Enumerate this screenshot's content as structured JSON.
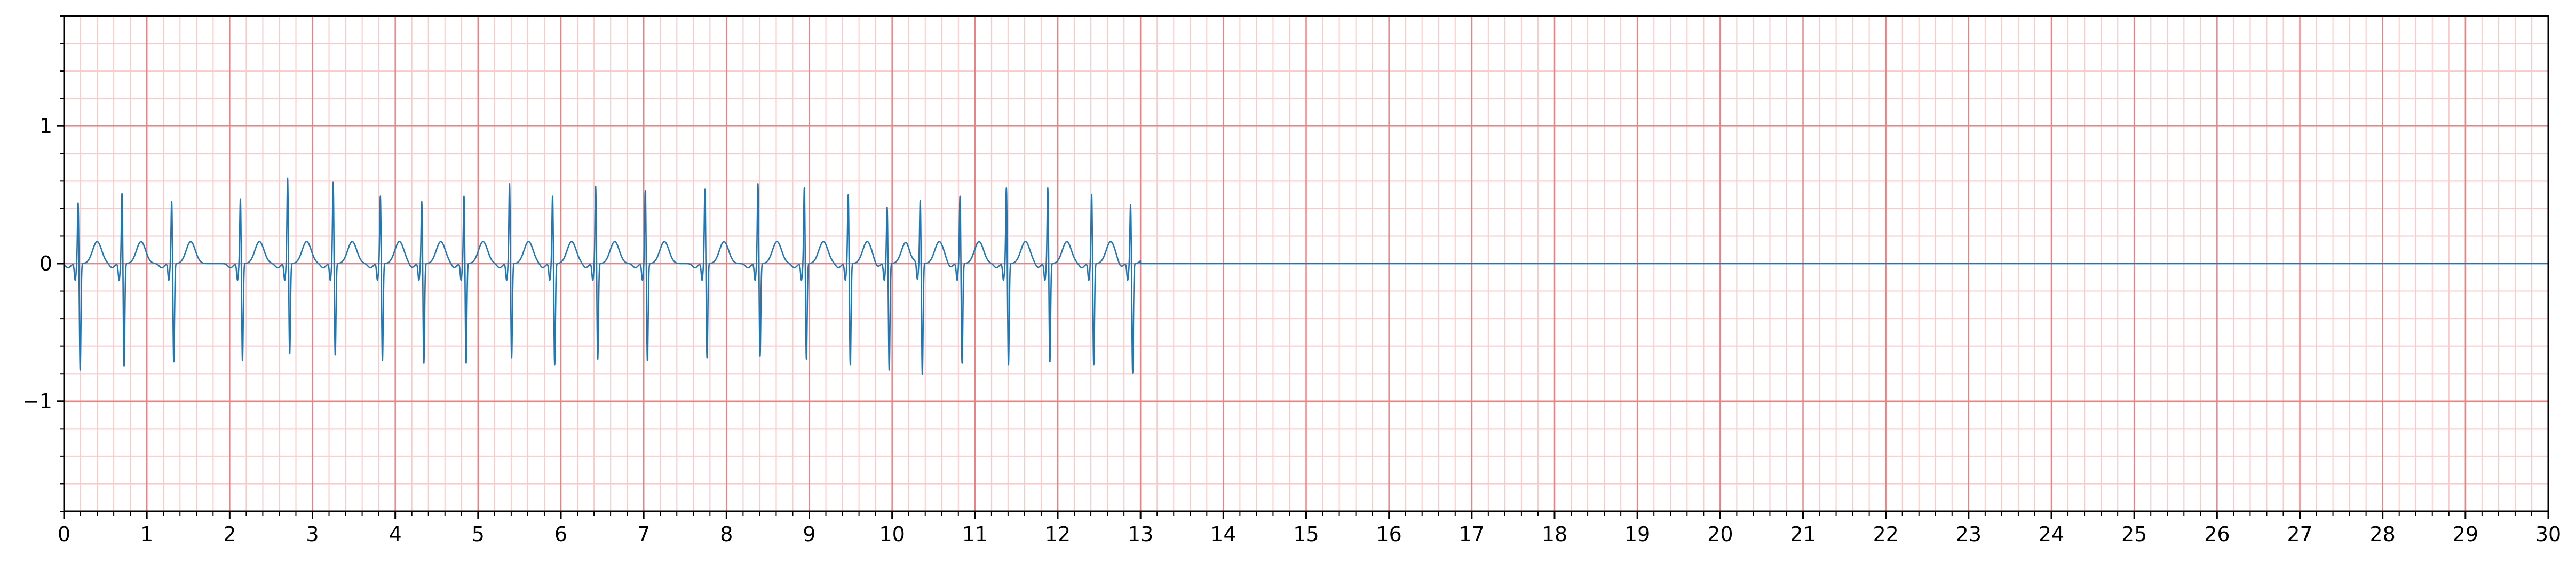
{
  "chart_data": {
    "type": "line",
    "title": "",
    "xlabel": "",
    "ylabel": "",
    "xlim": [
      0,
      30
    ],
    "ylim": [
      -1.8,
      1.8
    ],
    "x_ticks": [
      0,
      1,
      2,
      3,
      4,
      5,
      6,
      7,
      8,
      9,
      10,
      11,
      12,
      13,
      14,
      15,
      16,
      17,
      18,
      19,
      20,
      21,
      22,
      23,
      24,
      25,
      26,
      27,
      28,
      29,
      30
    ],
    "x_tick_labels": [
      "0",
      "1",
      "2",
      "3",
      "4",
      "5",
      "6",
      "7",
      "8",
      "9",
      "10",
      "11",
      "12",
      "13",
      "14",
      "15",
      "16",
      "17",
      "18",
      "19",
      "20",
      "21",
      "22",
      "23",
      "24",
      "25",
      "26",
      "27",
      "28",
      "29",
      "30"
    ],
    "y_ticks": [
      -1,
      0,
      1
    ],
    "y_tick_labels": [
      "−1",
      "0",
      "1"
    ],
    "grid": {
      "major_x_step": 1,
      "major_y_step": 1,
      "minor_x_step": 0.2,
      "minor_y_step": 0.2,
      "major_color": "#f08080",
      "minor_color": "#ffc8c8"
    },
    "line_color": "#1f77b4",
    "signal_end": 13.0,
    "beats": [
      {
        "t": 0.17,
        "r": 0.45,
        "s": -0.78
      },
      {
        "t": 0.7,
        "r": 0.52,
        "s": -0.75
      },
      {
        "t": 1.3,
        "r": 0.46,
        "s": -0.72
      },
      {
        "t": 2.13,
        "r": 0.48,
        "s": -0.71
      },
      {
        "t": 2.7,
        "r": 0.63,
        "s": -0.66
      },
      {
        "t": 3.25,
        "r": 0.6,
        "s": -0.67
      },
      {
        "t": 3.82,
        "r": 0.5,
        "s": -0.71
      },
      {
        "t": 4.32,
        "r": 0.46,
        "s": -0.73
      },
      {
        "t": 4.83,
        "r": 0.5,
        "s": -0.73
      },
      {
        "t": 5.38,
        "r": 0.59,
        "s": -0.69
      },
      {
        "t": 5.9,
        "r": 0.5,
        "s": -0.74
      },
      {
        "t": 6.42,
        "r": 0.57,
        "s": -0.7
      },
      {
        "t": 7.02,
        "r": 0.54,
        "s": -0.71
      },
      {
        "t": 7.74,
        "r": 0.55,
        "s": -0.69
      },
      {
        "t": 8.38,
        "r": 0.59,
        "s": -0.68
      },
      {
        "t": 8.94,
        "r": 0.56,
        "s": -0.7
      },
      {
        "t": 9.47,
        "r": 0.51,
        "s": -0.74
      },
      {
        "t": 9.94,
        "r": 0.42,
        "s": -0.78
      },
      {
        "t": 10.34,
        "r": 0.47,
        "s": -0.81
      },
      {
        "t": 10.82,
        "r": 0.5,
        "s": -0.73
      },
      {
        "t": 11.38,
        "r": 0.56,
        "s": -0.74
      },
      {
        "t": 11.88,
        "r": 0.56,
        "s": -0.72
      },
      {
        "t": 12.41,
        "r": 0.51,
        "s": -0.74
      },
      {
        "t": 12.88,
        "r": 0.44,
        "s": -0.8
      }
    ]
  }
}
